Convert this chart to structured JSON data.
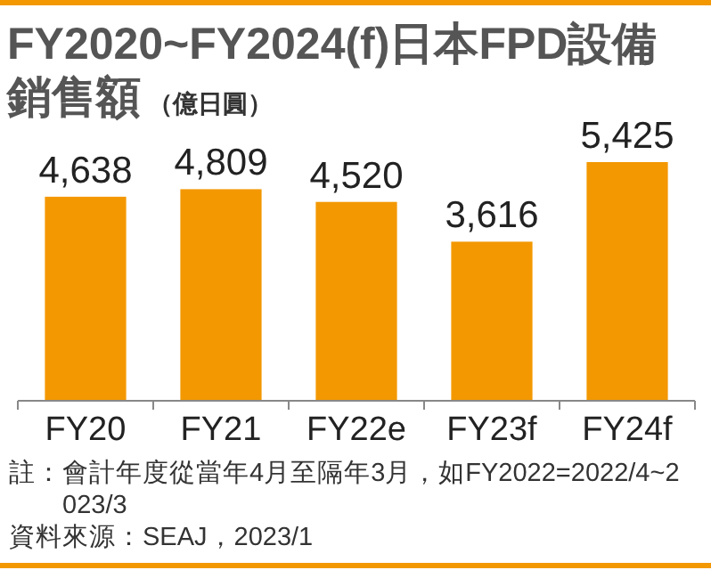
{
  "chart_data": {
    "type": "bar",
    "title": "FY2020~FY2024(f)日本FPD設備銷售額",
    "subtitle": "（億日圓）",
    "categories": [
      "FY20",
      "FY21",
      "FY22e",
      "FY23f",
      "FY24f"
    ],
    "values": [
      4638,
      4809,
      4520,
      3616,
      5425
    ],
    "color": "#f39800",
    "value_labels": [
      "4,638",
      "4,809",
      "4,520",
      "3,616",
      "5,425"
    ],
    "annotations": [
      "註：會計年度從當年4月至隔年3月，如FY2022=2022/4~2023/3",
      "資料來源：SEAJ，2023/1"
    ]
  }
}
